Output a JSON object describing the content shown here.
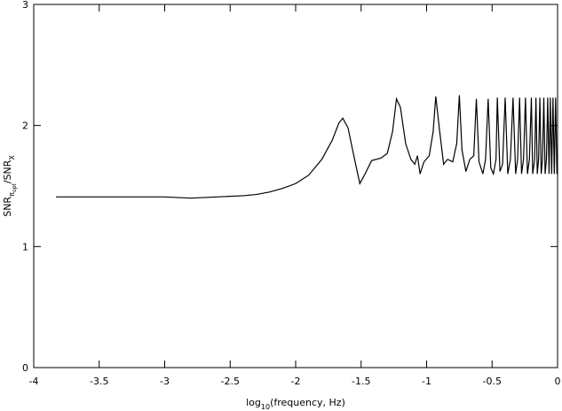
{
  "chart_data": {
    "type": "line",
    "xlabel_parts": [
      "log",
      "10",
      "(frequency, Hz)"
    ],
    "ylabel_parts": [
      "SNR",
      "π",
      "opt",
      "/SNR",
      "X"
    ],
    "xlim": [
      -4,
      0
    ],
    "ylim": [
      0,
      3
    ],
    "xticks": [
      -4,
      -3.5,
      -3,
      -2.5,
      -2,
      -1.5,
      -1,
      -0.5,
      0
    ],
    "yticks": [
      0,
      1,
      2,
      3
    ],
    "color": "#000000",
    "x": [
      -3.83,
      -3.5,
      -3.2,
      -3.0,
      -2.8,
      -2.6,
      -2.4,
      -2.3,
      -2.2,
      -2.1,
      -2.0,
      -1.9,
      -1.8,
      -1.72,
      -1.67,
      -1.64,
      -1.6,
      -1.55,
      -1.51,
      -1.47,
      -1.42,
      -1.35,
      -1.3,
      -1.26,
      -1.23,
      -1.2,
      -1.16,
      -1.12,
      -1.09,
      -1.07,
      -1.05,
      -1.02,
      -0.98,
      -0.95,
      -0.93,
      -0.9,
      -0.87,
      -0.84,
      -0.8,
      -0.77,
      -0.75,
      -0.73,
      -0.7,
      -0.67,
      -0.64,
      -0.62,
      -0.6,
      -0.57,
      -0.55,
      -0.53,
      -0.51,
      -0.49,
      -0.47,
      -0.46,
      -0.44,
      -0.42,
      -0.4,
      -0.38,
      -0.36,
      -0.34,
      -0.32,
      -0.305,
      -0.29,
      -0.275,
      -0.26,
      -0.245,
      -0.23,
      -0.215,
      -0.2,
      -0.19,
      -0.175,
      -0.165,
      -0.155,
      -0.145,
      -0.135,
      -0.125,
      -0.115,
      -0.105,
      -0.095,
      -0.085,
      -0.075,
      -0.065,
      -0.055,
      -0.045,
      -0.035,
      -0.025,
      -0.015,
      -0.005,
      0
    ],
    "y": [
      1.41,
      1.41,
      1.41,
      1.41,
      1.4,
      1.41,
      1.42,
      1.43,
      1.45,
      1.48,
      1.52,
      1.59,
      1.72,
      1.88,
      2.02,
      2.06,
      1.98,
      1.72,
      1.52,
      1.6,
      1.71,
      1.73,
      1.77,
      1.95,
      2.22,
      2.15,
      1.85,
      1.72,
      1.68,
      1.75,
      1.6,
      1.7,
      1.75,
      1.95,
      2.24,
      1.95,
      1.68,
      1.72,
      1.7,
      1.85,
      2.25,
      1.8,
      1.62,
      1.72,
      1.75,
      2.22,
      1.7,
      1.6,
      1.72,
      2.22,
      1.65,
      1.6,
      1.72,
      2.23,
      1.62,
      1.68,
      2.23,
      1.6,
      1.72,
      2.23,
      1.6,
      1.72,
      2.23,
      1.6,
      1.72,
      2.23,
      1.6,
      1.72,
      2.23,
      1.6,
      1.72,
      2.23,
      1.6,
      1.72,
      2.23,
      1.6,
      1.72,
      2.23,
      1.6,
      1.72,
      2.23,
      1.6,
      2.23,
      1.6,
      2.23,
      1.6,
      2.23,
      1.6,
      1.75
    ]
  }
}
